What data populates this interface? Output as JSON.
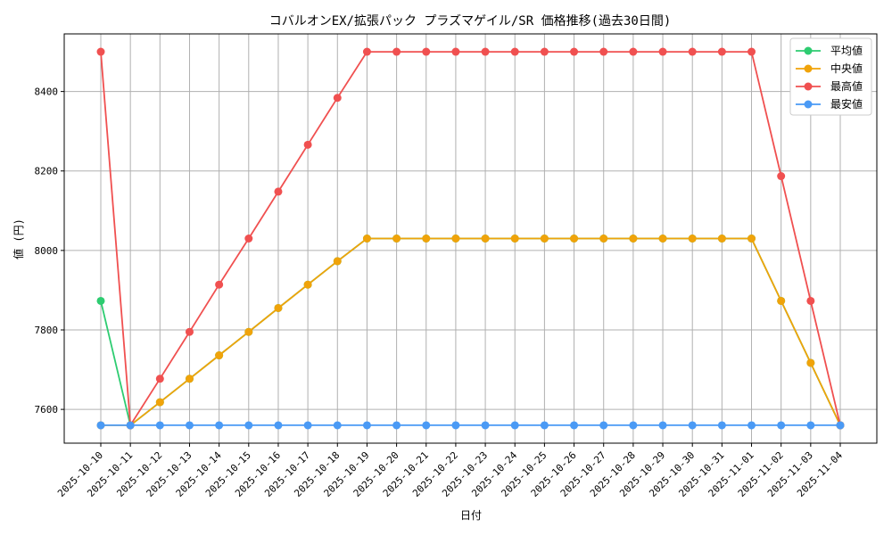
{
  "chart_data": {
    "type": "line",
    "title": "コバルオンEX/拡張パック プラズマゲイル/SR 価格推移(過去30日間)",
    "xlabel": "日付",
    "ylabel": "値 (円)",
    "categories": [
      "2025-10-10",
      "2025-10-11",
      "2025-10-12",
      "2025-10-13",
      "2025-10-14",
      "2025-10-15",
      "2025-10-16",
      "2025-10-17",
      "2025-10-18",
      "2025-10-19",
      "2025-10-20",
      "2025-10-21",
      "2025-10-22",
      "2025-10-23",
      "2025-10-24",
      "2025-10-25",
      "2025-10-26",
      "2025-10-27",
      "2025-10-28",
      "2025-10-29",
      "2025-10-30",
      "2025-10-31",
      "2025-11-01",
      "2025-11-02",
      "2025-11-03",
      "2025-11-04"
    ],
    "yticks": [
      7600,
      7800,
      8000,
      8200,
      8400
    ],
    "ylim": [
      7515,
      8545
    ],
    "grid": true,
    "legend_position": "top-right",
    "series": [
      {
        "name": "平均値",
        "color": "#2ecc71",
        "values": [
          7873,
          7560,
          7618,
          7677,
          7736,
          7795,
          7855,
          7914,
          7973,
          8030,
          8030,
          8030,
          8030,
          8030,
          8030,
          8030,
          8030,
          8030,
          8030,
          8030,
          8030,
          8030,
          8030,
          7873,
          7717,
          7560
        ]
      },
      {
        "name": "中央値",
        "color": "#f0a30a",
        "values": [
          7560,
          7560,
          7618,
          7677,
          7736,
          7795,
          7855,
          7914,
          7973,
          8030,
          8030,
          8030,
          8030,
          8030,
          8030,
          8030,
          8030,
          8030,
          8030,
          8030,
          8030,
          8030,
          8030,
          7873,
          7717,
          7560
        ]
      },
      {
        "name": "最高値",
        "color": "#f05050",
        "values": [
          8500,
          7560,
          7677,
          7795,
          7914,
          8030,
          8148,
          8266,
          8384,
          8500,
          8500,
          8500,
          8500,
          8500,
          8500,
          8500,
          8500,
          8500,
          8500,
          8500,
          8500,
          8500,
          8500,
          8187,
          7873,
          7560
        ]
      },
      {
        "name": "最安値",
        "color": "#4a9af5",
        "values": [
          7560,
          7560,
          7560,
          7560,
          7560,
          7560,
          7560,
          7560,
          7560,
          7560,
          7560,
          7560,
          7560,
          7560,
          7560,
          7560,
          7560,
          7560,
          7560,
          7560,
          7560,
          7560,
          7560,
          7560,
          7560,
          7560
        ]
      }
    ]
  }
}
